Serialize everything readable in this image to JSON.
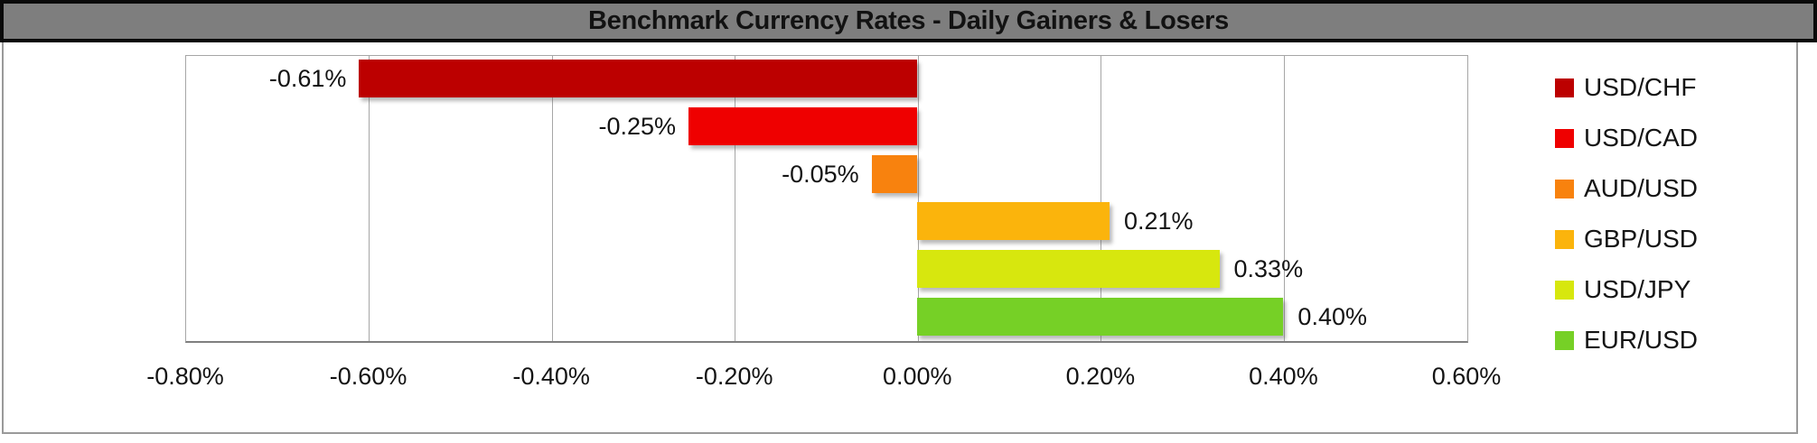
{
  "title": "Benchmark Currency Rates - Daily Gainers & Losers",
  "colors": {
    "title_bar_bg": "#7E7E7E",
    "title_border": "#0A0A0A",
    "title_text": "#121212",
    "chart_bg": "#FFFFFF",
    "body_border": "#9A9A9A",
    "gridline": "#A6A6A6",
    "axis_line": "#7F7F7F",
    "label_text": "#141414"
  },
  "chart_data": {
    "type": "bar",
    "orientation": "horizontal",
    "title": "Benchmark Currency Rates - Daily Gainers & Losers",
    "categories": [
      "USD/CHF",
      "USD/CAD",
      "AUD/USD",
      "GBP/USD",
      "USD/JPY",
      "EUR/USD"
    ],
    "values": [
      -0.61,
      -0.25,
      -0.05,
      0.21,
      0.33,
      0.4
    ],
    "value_labels": [
      "-0.61%",
      "-0.25%",
      "-0.05%",
      "0.21%",
      "0.33%",
      "0.40%"
    ],
    "bar_colors": [
      "#BC0000",
      "#EF0000",
      "#F8820E",
      "#FBB40C",
      "#D7E70E",
      "#76D026"
    ],
    "xlabel": "",
    "ylabel": "",
    "xlim": [
      -0.8,
      0.6
    ],
    "x_ticks": [
      -0.8,
      -0.6,
      -0.4,
      -0.2,
      0.0,
      0.2,
      0.4,
      0.6
    ],
    "x_tick_labels": [
      "-0.80%",
      "-0.60%",
      "-0.40%",
      "-0.20%",
      "0.00%",
      "0.20%",
      "0.40%",
      "0.60%"
    ],
    "grid": true,
    "legend_position": "right",
    "legend": [
      {
        "label": "USD/CHF",
        "color": "#BC0000"
      },
      {
        "label": "USD/CAD",
        "color": "#EF0000"
      },
      {
        "label": "AUD/USD",
        "color": "#F8820E"
      },
      {
        "label": "GBP/USD",
        "color": "#FBB40C"
      },
      {
        "label": "USD/JPY",
        "color": "#D7E70E"
      },
      {
        "label": "EUR/USD",
        "color": "#76D026"
      }
    ]
  }
}
